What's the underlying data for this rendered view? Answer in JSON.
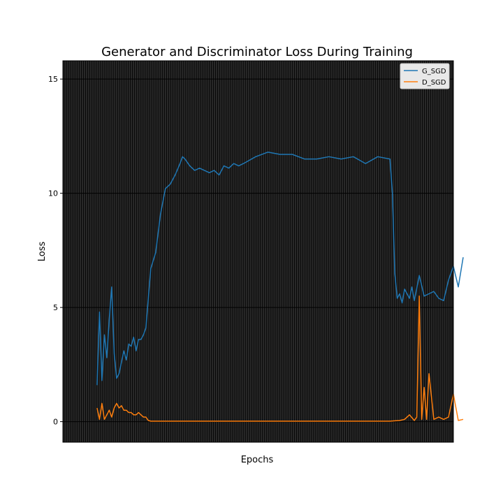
{
  "chart_data": {
    "type": "line",
    "title": "Generator and Discriminator Loss During Training",
    "xlabel": "Epochs",
    "ylabel": "Loss",
    "ylim": [
      -0.9,
      15.8
    ],
    "xlim": [
      0,
      1600
    ],
    "grid": true,
    "legend_position": "top-right",
    "yticks": [
      0,
      5,
      10,
      15
    ],
    "series": [
      {
        "name": "G_SGD",
        "color": "#1f77b4",
        "x": [
          0,
          10,
          20,
          30,
          40,
          50,
          60,
          70,
          80,
          90,
          100,
          110,
          120,
          130,
          140,
          150,
          160,
          170,
          180,
          190,
          200,
          220,
          240,
          260,
          280,
          300,
          320,
          340,
          350,
          360,
          380,
          400,
          420,
          440,
          460,
          480,
          500,
          520,
          540,
          560,
          580,
          600,
          650,
          700,
          750,
          800,
          850,
          900,
          950,
          1000,
          1050,
          1100,
          1150,
          1200,
          1210,
          1220,
          1230,
          1240,
          1250,
          1260,
          1270,
          1280,
          1290,
          1300,
          1320,
          1340,
          1360,
          1380,
          1400,
          1420,
          1440,
          1460,
          1480,
          1500
        ],
        "y": [
          1.6,
          4.8,
          1.8,
          3.8,
          2.8,
          4.5,
          5.9,
          3.0,
          1.9,
          2.1,
          2.6,
          3.1,
          2.7,
          3.4,
          3.3,
          3.7,
          3.1,
          3.6,
          3.6,
          3.8,
          4.1,
          6.7,
          7.4,
          9.1,
          10.2,
          10.4,
          10.8,
          11.3,
          11.6,
          11.5,
          11.2,
          11.0,
          11.1,
          11.0,
          10.9,
          11.0,
          10.8,
          11.2,
          11.1,
          11.3,
          11.2,
          11.3,
          11.6,
          11.8,
          11.7,
          11.7,
          11.5,
          11.5,
          11.6,
          11.5,
          11.6,
          11.3,
          11.6,
          11.5,
          10.0,
          6.5,
          5.4,
          5.6,
          5.2,
          5.8,
          5.6,
          5.4,
          5.9,
          5.3,
          6.4,
          5.5,
          5.6,
          5.7,
          5.4,
          5.3,
          6.2,
          6.8,
          5.9,
          7.2
        ]
      },
      {
        "name": "D_SGD",
        "color": "#ff7f0e",
        "x": [
          0,
          10,
          20,
          30,
          40,
          50,
          60,
          70,
          80,
          90,
          100,
          110,
          120,
          130,
          140,
          150,
          160,
          170,
          180,
          190,
          200,
          210,
          220,
          260,
          300,
          400,
          500,
          600,
          700,
          800,
          900,
          1000,
          1100,
          1200,
          1240,
          1260,
          1280,
          1300,
          1310,
          1320,
          1330,
          1340,
          1350,
          1360,
          1380,
          1400,
          1420,
          1440,
          1460,
          1480,
          1500
        ],
        "y": [
          0.6,
          0.1,
          0.8,
          0.1,
          0.3,
          0.5,
          0.2,
          0.6,
          0.8,
          0.6,
          0.7,
          0.5,
          0.5,
          0.4,
          0.4,
          0.3,
          0.3,
          0.4,
          0.3,
          0.2,
          0.2,
          0.05,
          0.02,
          0.02,
          0.02,
          0.02,
          0.02,
          0.02,
          0.02,
          0.02,
          0.02,
          0.02,
          0.02,
          0.02,
          0.05,
          0.1,
          0.3,
          0.05,
          0.2,
          5.5,
          0.1,
          1.5,
          0.1,
          2.1,
          0.1,
          0.2,
          0.1,
          0.2,
          1.2,
          0.05,
          0.1
        ]
      }
    ]
  }
}
